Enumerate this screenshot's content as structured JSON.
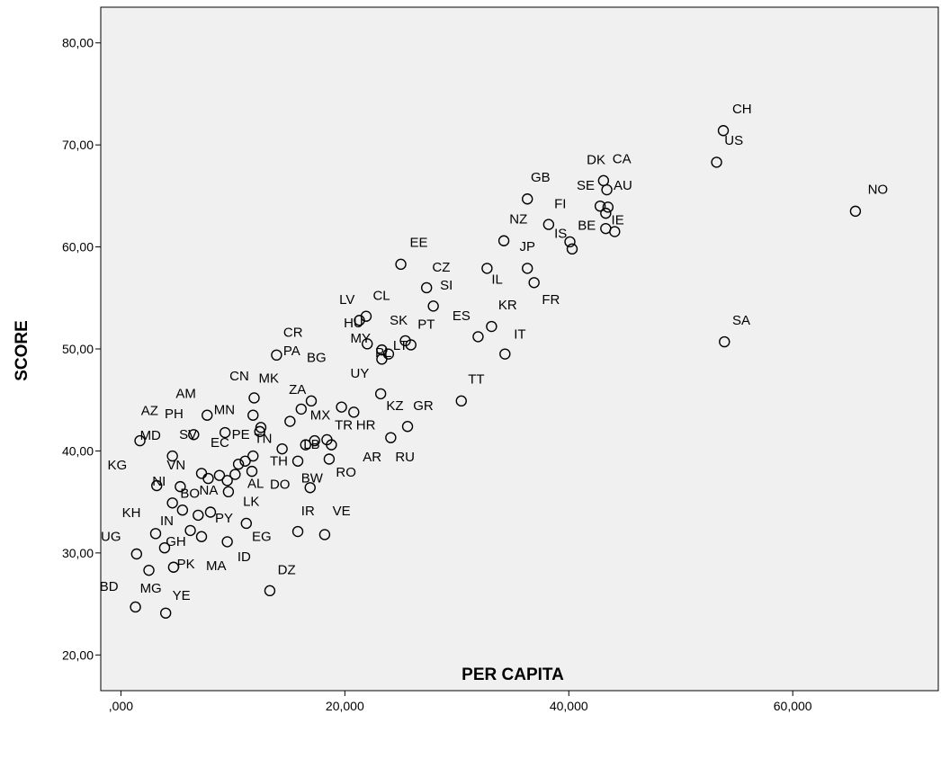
{
  "chart_data": {
    "type": "scatter",
    "xlabel": "PER CAPITA",
    "ylabel": "SCORE",
    "xlim": [
      -1800,
      73000
    ],
    "ylim": [
      16.5,
      83.5
    ],
    "grid": false,
    "x_ticks": [
      0,
      20000,
      40000,
      60000
    ],
    "x_tick_labels": [
      ",000",
      "20,000",
      "40,000",
      "60,000"
    ],
    "y_ticks": [
      20,
      30,
      40,
      50,
      60,
      70,
      80
    ],
    "y_tick_labels": [
      "20,00",
      "30,00",
      "40,00",
      "50,00",
      "60,00",
      "70,00",
      "80,00"
    ],
    "colors": {
      "plot_bg": "#f0f0f0",
      "marker": "#000000"
    },
    "points": [
      {
        "x": 53800,
        "y": 71.4
      },
      {
        "x": 53200,
        "y": 68.3
      },
      {
        "x": 65600,
        "y": 63.5
      },
      {
        "x": 53900,
        "y": 50.7
      },
      {
        "x": 43100,
        "y": 66.5
      },
      {
        "x": 43400,
        "y": 65.6
      },
      {
        "x": 42800,
        "y": 64.0
      },
      {
        "x": 43500,
        "y": 63.9
      },
      {
        "x": 43300,
        "y": 63.3
      },
      {
        "x": 44100,
        "y": 61.5
      },
      {
        "x": 43300,
        "y": 61.8
      },
      {
        "x": 36300,
        "y": 64.7
      },
      {
        "x": 38200,
        "y": 62.2
      },
      {
        "x": 40100,
        "y": 60.5
      },
      {
        "x": 40300,
        "y": 59.8
      },
      {
        "x": 34200,
        "y": 60.6
      },
      {
        "x": 36300,
        "y": 57.9
      },
      {
        "x": 32700,
        "y": 57.9
      },
      {
        "x": 36900,
        "y": 56.5
      },
      {
        "x": 33100,
        "y": 52.2
      },
      {
        "x": 31900,
        "y": 51.2
      },
      {
        "x": 34300,
        "y": 49.5
      },
      {
        "x": 30400,
        "y": 44.9
      },
      {
        "x": 25000,
        "y": 58.3
      },
      {
        "x": 27300,
        "y": 56.0
      },
      {
        "x": 27900,
        "y": 54.2
      },
      {
        "x": 25400,
        "y": 50.8
      },
      {
        "x": 25900,
        "y": 50.4
      },
      {
        "x": 21300,
        "y": 52.8
      },
      {
        "x": 21900,
        "y": 53.2
      },
      {
        "x": 22000,
        "y": 50.5
      },
      {
        "x": 23300,
        "y": 49.9
      },
      {
        "x": 23900,
        "y": 49.5
      },
      {
        "x": 23300,
        "y": 49.0
      },
      {
        "x": 23200,
        "y": 45.6
      },
      {
        "x": 25600,
        "y": 42.4
      },
      {
        "x": 24100,
        "y": 41.3
      },
      {
        "x": 19700,
        "y": 44.3
      },
      {
        "x": 20800,
        "y": 43.8
      },
      {
        "x": 17000,
        "y": 44.9
      },
      {
        "x": 16100,
        "y": 44.1
      },
      {
        "x": 15100,
        "y": 42.9
      },
      {
        "x": 18400,
        "y": 41.1
      },
      {
        "x": 18800,
        "y": 40.6
      },
      {
        "x": 17300,
        "y": 41.0
      },
      {
        "x": 16500,
        "y": 40.6
      },
      {
        "x": 18600,
        "y": 39.2
      },
      {
        "x": 15800,
        "y": 39.0
      },
      {
        "x": 14400,
        "y": 40.2
      },
      {
        "x": 16900,
        "y": 36.4
      },
      {
        "x": 13900,
        "y": 49.4
      },
      {
        "x": 11900,
        "y": 45.2
      },
      {
        "x": 11800,
        "y": 43.5
      },
      {
        "x": 12500,
        "y": 42.3
      },
      {
        "x": 12400,
        "y": 41.9
      },
      {
        "x": 9300,
        "y": 41.8
      },
      {
        "x": 7700,
        "y": 43.5
      },
      {
        "x": 6500,
        "y": 41.6
      },
      {
        "x": 1700,
        "y": 41.0
      },
      {
        "x": 4600,
        "y": 39.5
      },
      {
        "x": 10500,
        "y": 38.7
      },
      {
        "x": 11800,
        "y": 39.5
      },
      {
        "x": 11100,
        "y": 39.0
      },
      {
        "x": 11700,
        "y": 38.0
      },
      {
        "x": 10200,
        "y": 37.7
      },
      {
        "x": 8800,
        "y": 37.6
      },
      {
        "x": 7200,
        "y": 37.8
      },
      {
        "x": 7800,
        "y": 37.3
      },
      {
        "x": 9500,
        "y": 37.1
      },
      {
        "x": 9600,
        "y": 36.0
      },
      {
        "x": 5300,
        "y": 36.5
      },
      {
        "x": 3200,
        "y": 36.6
      },
      {
        "x": 4600,
        "y": 34.9
      },
      {
        "x": 5500,
        "y": 34.2
      },
      {
        "x": 6900,
        "y": 33.7
      },
      {
        "x": 8000,
        "y": 34.0
      },
      {
        "x": 3100,
        "y": 31.9
      },
      {
        "x": 6200,
        "y": 32.2
      },
      {
        "x": 7200,
        "y": 31.6
      },
      {
        "x": 11200,
        "y": 32.9
      },
      {
        "x": 9500,
        "y": 31.1
      },
      {
        "x": 15800,
        "y": 32.1
      },
      {
        "x": 18200,
        "y": 31.8
      },
      {
        "x": 1400,
        "y": 29.9
      },
      {
        "x": 3900,
        "y": 30.5
      },
      {
        "x": 2500,
        "y": 28.3
      },
      {
        "x": 4700,
        "y": 28.6
      },
      {
        "x": 13300,
        "y": 26.3
      },
      {
        "x": 1300,
        "y": 24.7
      },
      {
        "x": 4000,
        "y": 24.1
      }
    ],
    "annotations": [
      {
        "text": "CH",
        "x": 54600,
        "y": 73.1
      },
      {
        "text": "US",
        "x": 53900,
        "y": 70.0
      },
      {
        "text": "NO",
        "x": 66700,
        "y": 65.2
      },
      {
        "text": "SA",
        "x": 54600,
        "y": 52.4
      },
      {
        "text": "DK",
        "x": 41600,
        "y": 68.1
      },
      {
        "text": "CA",
        "x": 43900,
        "y": 68.2
      },
      {
        "text": "GB",
        "x": 36600,
        "y": 66.4
      },
      {
        "text": "SE",
        "x": 40700,
        "y": 65.6
      },
      {
        "text": "AU",
        "x": 44000,
        "y": 65.6
      },
      {
        "text": "FI",
        "x": 38700,
        "y": 63.8
      },
      {
        "text": "IE",
        "x": 43800,
        "y": 62.2
      },
      {
        "text": "NZ",
        "x": 34700,
        "y": 62.3
      },
      {
        "text": "IS",
        "x": 38700,
        "y": 60.9
      },
      {
        "text": "BE",
        "x": 40800,
        "y": 61.7
      },
      {
        "text": "JP",
        "x": 35600,
        "y": 59.6
      },
      {
        "text": "IL",
        "x": 33100,
        "y": 56.4
      },
      {
        "text": "FR",
        "x": 37600,
        "y": 54.4
      },
      {
        "text": "KR",
        "x": 33700,
        "y": 53.9
      },
      {
        "text": "ES",
        "x": 29600,
        "y": 52.8
      },
      {
        "text": "IT",
        "x": 35100,
        "y": 51.0
      },
      {
        "text": "TT",
        "x": 31000,
        "y": 46.6
      },
      {
        "text": "EE",
        "x": 25800,
        "y": 60.0
      },
      {
        "text": "CZ",
        "x": 27800,
        "y": 57.6
      },
      {
        "text": "SI",
        "x": 28500,
        "y": 55.8
      },
      {
        "text": "SK",
        "x": 24000,
        "y": 52.4
      },
      {
        "text": "PT",
        "x": 26500,
        "y": 52.0
      },
      {
        "text": "LV",
        "x": 19500,
        "y": 54.4
      },
      {
        "text": "CL",
        "x": 22500,
        "y": 54.8
      },
      {
        "text": "HU",
        "x": 19900,
        "y": 52.1
      },
      {
        "text": "MY",
        "x": 20500,
        "y": 50.6
      },
      {
        "text": "PL",
        "x": 22700,
        "y": 49.2
      },
      {
        "text": "LT",
        "x": 24300,
        "y": 49.9
      },
      {
        "text": "UY",
        "x": 20500,
        "y": 47.2
      },
      {
        "text": "KZ",
        "x": 23700,
        "y": 44.0
      },
      {
        "text": "GR",
        "x": 26100,
        "y": 44.0
      },
      {
        "text": "RU",
        "x": 24500,
        "y": 39.0
      },
      {
        "text": "AR",
        "x": 21600,
        "y": 39.0
      },
      {
        "text": "TR",
        "x": 19100,
        "y": 42.1
      },
      {
        "text": "HR",
        "x": 21000,
        "y": 42.1
      },
      {
        "text": "MX",
        "x": 16900,
        "y": 43.1
      },
      {
        "text": "ZA",
        "x": 15000,
        "y": 45.6
      },
      {
        "text": "LB",
        "x": 16300,
        "y": 40.2
      },
      {
        "text": "RO",
        "x": 19200,
        "y": 37.5
      },
      {
        "text": "BW",
        "x": 16100,
        "y": 36.9
      },
      {
        "text": "TH",
        "x": 13300,
        "y": 38.6
      },
      {
        "text": "DO",
        "x": 13300,
        "y": 36.3
      },
      {
        "text": "AL",
        "x": 11300,
        "y": 36.4
      },
      {
        "text": "TN",
        "x": 11900,
        "y": 40.8
      },
      {
        "text": "CR",
        "x": 14500,
        "y": 51.2
      },
      {
        "text": "PA",
        "x": 14500,
        "y": 49.4
      },
      {
        "text": "BG",
        "x": 16600,
        "y": 48.7
      },
      {
        "text": "CN",
        "x": 9700,
        "y": 46.9
      },
      {
        "text": "MK",
        "x": 12300,
        "y": 46.7
      },
      {
        "text": "PE",
        "x": 9900,
        "y": 41.2
      },
      {
        "text": "MN",
        "x": 8300,
        "y": 43.6
      },
      {
        "text": "AM",
        "x": 4900,
        "y": 45.2
      },
      {
        "text": "PH",
        "x": 3900,
        "y": 43.2
      },
      {
        "text": "AZ",
        "x": 1800,
        "y": 43.5
      },
      {
        "text": "MD",
        "x": 1700,
        "y": 41.1
      },
      {
        "text": "SV",
        "x": 5200,
        "y": 41.2
      },
      {
        "text": "EC",
        "x": 8000,
        "y": 40.4
      },
      {
        "text": "VN",
        "x": 4100,
        "y": 38.2
      },
      {
        "text": "KG",
        "x": -1200,
        "y": 38.2
      },
      {
        "text": "NI",
        "x": 2800,
        "y": 36.6
      },
      {
        "text": "NA",
        "x": 7000,
        "y": 35.7
      },
      {
        "text": "BO",
        "x": 5300,
        "y": 35.4
      },
      {
        "text": "LK",
        "x": 10900,
        "y": 34.6
      },
      {
        "text": "PY",
        "x": 8400,
        "y": 33.0
      },
      {
        "text": "IN",
        "x": 3500,
        "y": 32.7
      },
      {
        "text": "KH",
        "x": 100,
        "y": 33.5
      },
      {
        "text": "IR",
        "x": 16100,
        "y": 33.7
      },
      {
        "text": "VE",
        "x": 18900,
        "y": 33.7
      },
      {
        "text": "EG",
        "x": 11700,
        "y": 31.2
      },
      {
        "text": "ID",
        "x": 10400,
        "y": 29.2
      },
      {
        "text": "UG",
        "x": -1800,
        "y": 31.2
      },
      {
        "text": "GH",
        "x": 4000,
        "y": 30.7
      },
      {
        "text": "PK",
        "x": 5000,
        "y": 28.5
      },
      {
        "text": "MA",
        "x": 7600,
        "y": 28.3
      },
      {
        "text": "DZ",
        "x": 14000,
        "y": 27.9
      },
      {
        "text": "BD",
        "x": -1900,
        "y": 26.3
      },
      {
        "text": "MG",
        "x": 1700,
        "y": 26.1
      },
      {
        "text": "YE",
        "x": 4600,
        "y": 25.4
      }
    ]
  }
}
